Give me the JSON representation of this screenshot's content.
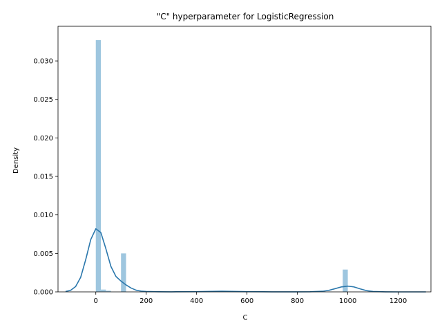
{
  "chart_data": {
    "type": "histogram+kde",
    "title": "\"C\" hyperparameter for LogisticRegression",
    "xlabel": "C",
    "ylabel": "Density",
    "xlim": [
      -150,
      1330
    ],
    "ylim": [
      0,
      0.0345
    ],
    "x_ticks": [
      0,
      200,
      400,
      600,
      800,
      1000,
      1200
    ],
    "x_tick_labels": [
      "0",
      "200",
      "400",
      "600",
      "800",
      "1000",
      "1200"
    ],
    "y_ticks": [
      0,
      0.005,
      0.01,
      0.015,
      0.02,
      0.025,
      0.03
    ],
    "y_tick_labels": [
      "0.000",
      "0.005",
      "0.010",
      "0.015",
      "0.020",
      "0.025",
      "0.030"
    ],
    "grid": false,
    "colors": {
      "hist": "#9ec6df",
      "kde": "#2a77ac",
      "axis": "#000000"
    },
    "histogram": {
      "bins": [
        {
          "x0": 0,
          "x1": 20,
          "density": 0.0327
        },
        {
          "x0": 20,
          "x1": 40,
          "density": 0.0003
        },
        {
          "x0": 40,
          "x1": 60,
          "density": 0.00015
        },
        {
          "x0": 100,
          "x1": 120,
          "density": 0.005
        },
        {
          "x0": 980,
          "x1": 1000,
          "density": 0.0029
        }
      ]
    },
    "kde": {
      "x": [
        -120,
        -100,
        -80,
        -60,
        -40,
        -20,
        0,
        20,
        40,
        60,
        80,
        100,
        120,
        140,
        160,
        180,
        200,
        250,
        300,
        400,
        500,
        600,
        700,
        800,
        850,
        900,
        925,
        950,
        975,
        1000,
        1025,
        1050,
        1075,
        1100,
        1150,
        1200,
        1250,
        1310
      ],
      "y": [
        5e-05,
        0.0002,
        0.0007,
        0.0019,
        0.0042,
        0.0068,
        0.0082,
        0.0077,
        0.0056,
        0.0033,
        0.002,
        0.0014,
        0.0009,
        0.0005,
        0.00022,
        0.0001,
        5e-05,
        2e-05,
        1e-05,
        3e-05,
        8e-05,
        3e-05,
        1e-05,
        1e-05,
        2e-05,
        8e-05,
        0.0002,
        0.00042,
        0.00065,
        0.00075,
        0.00064,
        0.00038,
        0.00016,
        5e-05,
        1e-05,
        0.0,
        0.0,
        0.0
      ]
    }
  }
}
